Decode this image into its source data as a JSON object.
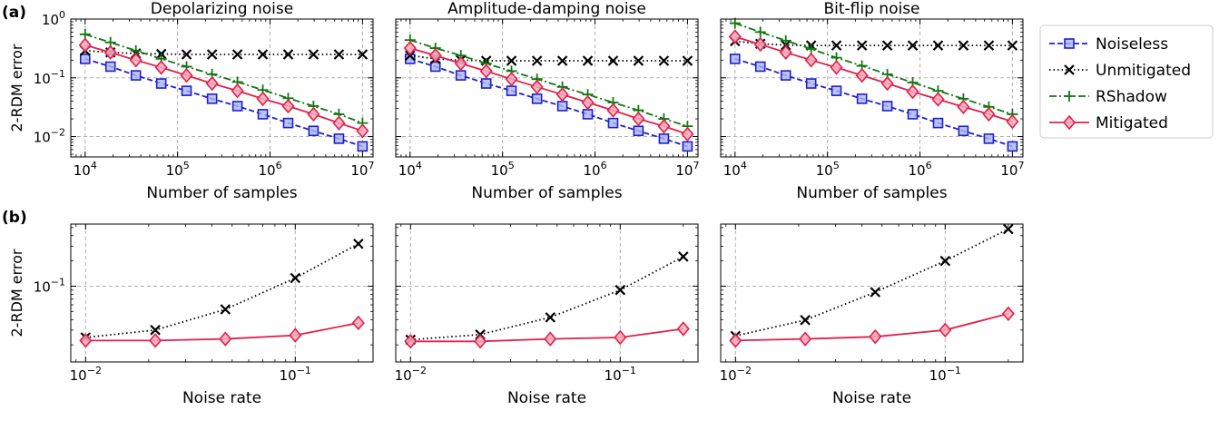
{
  "panel_labels": [
    "(a)",
    "(b)"
  ],
  "columns": [
    "Depolarizing noise",
    "Amplitude-damping noise",
    "Bit-flip noise"
  ],
  "row_a": {
    "xlabel": "Number of samples",
    "ylabel": "2-RDM error"
  },
  "row_b": {
    "xlabel": "Noise rate",
    "ylabel": "2-RDM error"
  },
  "legend": {
    "placement": "right of top row",
    "entries": [
      {
        "label": "Noiseless",
        "color": "#1f1fcc",
        "marker": "square",
        "line": "dashed"
      },
      {
        "label": "Unmitigated",
        "color": "#000000",
        "marker": "x",
        "line": "dotted"
      },
      {
        "label": "RShadow",
        "color": "#117711",
        "marker": "plus",
        "line": "dashdot"
      },
      {
        "label": "Mitigated",
        "color": "#e0204a",
        "marker": "diamond",
        "line": "solid"
      }
    ]
  },
  "chart_data": [
    {
      "type": "line",
      "title": "Depolarizing noise",
      "xlabel": "Number of samples",
      "ylabel": "2-RDM error",
      "xscale": "log",
      "yscale": "log",
      "xlim": [
        7000,
        13000000
      ],
      "ylim": [
        0.0045,
        1.0
      ],
      "grid": true,
      "xticks": [
        10000,
        100000,
        1000000,
        10000000
      ],
      "xtick_labels": [
        "10^4",
        "10^5",
        "10^6",
        "10^7"
      ],
      "yticks": [
        0.01,
        0.1,
        1
      ],
      "ytick_labels": [
        "10^-2",
        "10^-1",
        "10^0"
      ],
      "x": [
        10000,
        18800,
        35400,
        66600,
        125000,
        236000,
        444000,
        835000,
        1570000,
        2950000,
        5560000,
        10000000
      ],
      "series": [
        {
          "name": "Noiseless",
          "values": [
            0.21,
            0.155,
            0.11,
            0.08,
            0.06,
            0.044,
            0.033,
            0.024,
            0.017,
            0.0125,
            0.0092,
            0.0068
          ]
        },
        {
          "name": "Unmitigated",
          "values": [
            0.29,
            0.27,
            0.26,
            0.255,
            0.25,
            0.25,
            0.25,
            0.25,
            0.25,
            0.25,
            0.25,
            0.25
          ]
        },
        {
          "name": "RShadow",
          "values": [
            0.55,
            0.4,
            0.29,
            0.21,
            0.155,
            0.115,
            0.085,
            0.062,
            0.045,
            0.033,
            0.024,
            0.017
          ]
        },
        {
          "name": "Mitigated",
          "values": [
            0.36,
            0.27,
            0.2,
            0.15,
            0.11,
            0.08,
            0.06,
            0.044,
            0.033,
            0.024,
            0.017,
            0.0125
          ]
        }
      ]
    },
    {
      "type": "line",
      "title": "Amplitude-damping noise",
      "xlabel": "Number of samples",
      "ylabel": "",
      "xscale": "log",
      "yscale": "log",
      "xlim": [
        7000,
        13000000
      ],
      "ylim": [
        0.0045,
        1.0
      ],
      "grid": true,
      "xticks": [
        10000,
        100000,
        1000000,
        10000000
      ],
      "xtick_labels": [
        "10^4",
        "10^5",
        "10^6",
        "10^7"
      ],
      "yticks": [
        0.01,
        0.1,
        1
      ],
      "ytick_labels": [
        "",
        "",
        ""
      ],
      "x": [
        10000,
        18800,
        35400,
        66600,
        125000,
        236000,
        444000,
        835000,
        1570000,
        2950000,
        5560000,
        10000000
      ],
      "series": [
        {
          "name": "Noiseless",
          "values": [
            0.21,
            0.155,
            0.11,
            0.08,
            0.06,
            0.044,
            0.033,
            0.024,
            0.017,
            0.0125,
            0.0092,
            0.0068
          ]
        },
        {
          "name": "Unmitigated",
          "values": [
            0.24,
            0.21,
            0.2,
            0.195,
            0.195,
            0.195,
            0.195,
            0.195,
            0.195,
            0.195,
            0.195,
            0.195
          ]
        },
        {
          "name": "RShadow",
          "values": [
            0.44,
            0.32,
            0.24,
            0.175,
            0.13,
            0.095,
            0.07,
            0.052,
            0.038,
            0.028,
            0.02,
            0.015
          ]
        },
        {
          "name": "Mitigated",
          "values": [
            0.32,
            0.24,
            0.175,
            0.13,
            0.095,
            0.07,
            0.052,
            0.038,
            0.028,
            0.02,
            0.015,
            0.011
          ]
        }
      ]
    },
    {
      "type": "line",
      "title": "Bit-flip noise",
      "xlabel": "Number of samples",
      "ylabel": "",
      "xscale": "log",
      "yscale": "log",
      "xlim": [
        7000,
        13000000
      ],
      "ylim": [
        0.0045,
        1.0
      ],
      "grid": true,
      "xticks": [
        10000,
        100000,
        1000000,
        10000000
      ],
      "xtick_labels": [
        "10^4",
        "10^5",
        "10^6",
        "10^7"
      ],
      "yticks": [
        0.01,
        0.1,
        1
      ],
      "ytick_labels": [
        "",
        "",
        ""
      ],
      "x": [
        10000,
        18800,
        35400,
        66600,
        125000,
        236000,
        444000,
        835000,
        1570000,
        2950000,
        5560000,
        10000000
      ],
      "series": [
        {
          "name": "Noiseless",
          "values": [
            0.21,
            0.155,
            0.11,
            0.08,
            0.06,
            0.044,
            0.033,
            0.024,
            0.017,
            0.0125,
            0.0092,
            0.0068
          ]
        },
        {
          "name": "Unmitigated",
          "values": [
            0.42,
            0.38,
            0.36,
            0.355,
            0.355,
            0.355,
            0.355,
            0.355,
            0.355,
            0.355,
            0.355,
            0.355
          ]
        },
        {
          "name": "RShadow",
          "values": [
            0.85,
            0.6,
            0.43,
            0.31,
            0.22,
            0.16,
            0.115,
            0.083,
            0.06,
            0.044,
            0.032,
            0.024
          ]
        },
        {
          "name": "Mitigated",
          "values": [
            0.5,
            0.37,
            0.27,
            0.2,
            0.15,
            0.11,
            0.08,
            0.058,
            0.043,
            0.032,
            0.024,
            0.018
          ]
        }
      ]
    },
    {
      "type": "line",
      "title": "",
      "xlabel": "Noise rate",
      "ylabel": "2-RDM error",
      "xscale": "log",
      "yscale": "log",
      "xlim": [
        0.0085,
        0.235
      ],
      "ylim": [
        0.0125,
        0.55
      ],
      "grid": true,
      "xticks": [
        0.01,
        0.1
      ],
      "xtick_labels": [
        "10^-2",
        "10^-1"
      ],
      "yticks": [
        0.1
      ],
      "ytick_labels": [
        "10^-1"
      ],
      "x": [
        0.01,
        0.0215,
        0.0464,
        0.1,
        0.2
      ],
      "series": [
        {
          "name": "Unmitigated",
          "values": [
            0.0245,
            0.03,
            0.053,
            0.125,
            0.32
          ]
        },
        {
          "name": "Mitigated",
          "values": [
            0.0225,
            0.0225,
            0.0235,
            0.026,
            0.0365
          ]
        }
      ]
    },
    {
      "type": "line",
      "title": "",
      "xlabel": "Noise rate",
      "ylabel": "",
      "xscale": "log",
      "yscale": "log",
      "xlim": [
        0.0085,
        0.235
      ],
      "ylim": [
        0.0125,
        0.55
      ],
      "grid": true,
      "xticks": [
        0.01,
        0.1
      ],
      "xtick_labels": [
        "10^-2",
        "10^-1"
      ],
      "yticks": [
        0.1
      ],
      "ytick_labels": [
        ""
      ],
      "x": [
        0.01,
        0.0215,
        0.0464,
        0.1,
        0.2
      ],
      "series": [
        {
          "name": "Unmitigated",
          "values": [
            0.023,
            0.0265,
            0.0425,
            0.09,
            0.225
          ]
        },
        {
          "name": "Mitigated",
          "values": [
            0.022,
            0.022,
            0.0235,
            0.0245,
            0.031
          ]
        }
      ]
    },
    {
      "type": "line",
      "title": "",
      "xlabel": "Noise rate",
      "ylabel": "",
      "xscale": "log",
      "yscale": "log",
      "xlim": [
        0.0085,
        0.235
      ],
      "ylim": [
        0.0125,
        0.55
      ],
      "grid": true,
      "xticks": [
        0.01,
        0.1
      ],
      "xtick_labels": [
        "10^-2",
        "10^-1"
      ],
      "yticks": [
        0.1
      ],
      "ytick_labels": [
        ""
      ],
      "x": [
        0.01,
        0.0215,
        0.0464,
        0.1,
        0.2
      ],
      "series": [
        {
          "name": "Unmitigated",
          "values": [
            0.0255,
            0.0395,
            0.085,
            0.2,
            0.48
          ]
        },
        {
          "name": "Mitigated",
          "values": [
            0.0225,
            0.0235,
            0.025,
            0.03,
            0.047
          ]
        }
      ]
    }
  ]
}
